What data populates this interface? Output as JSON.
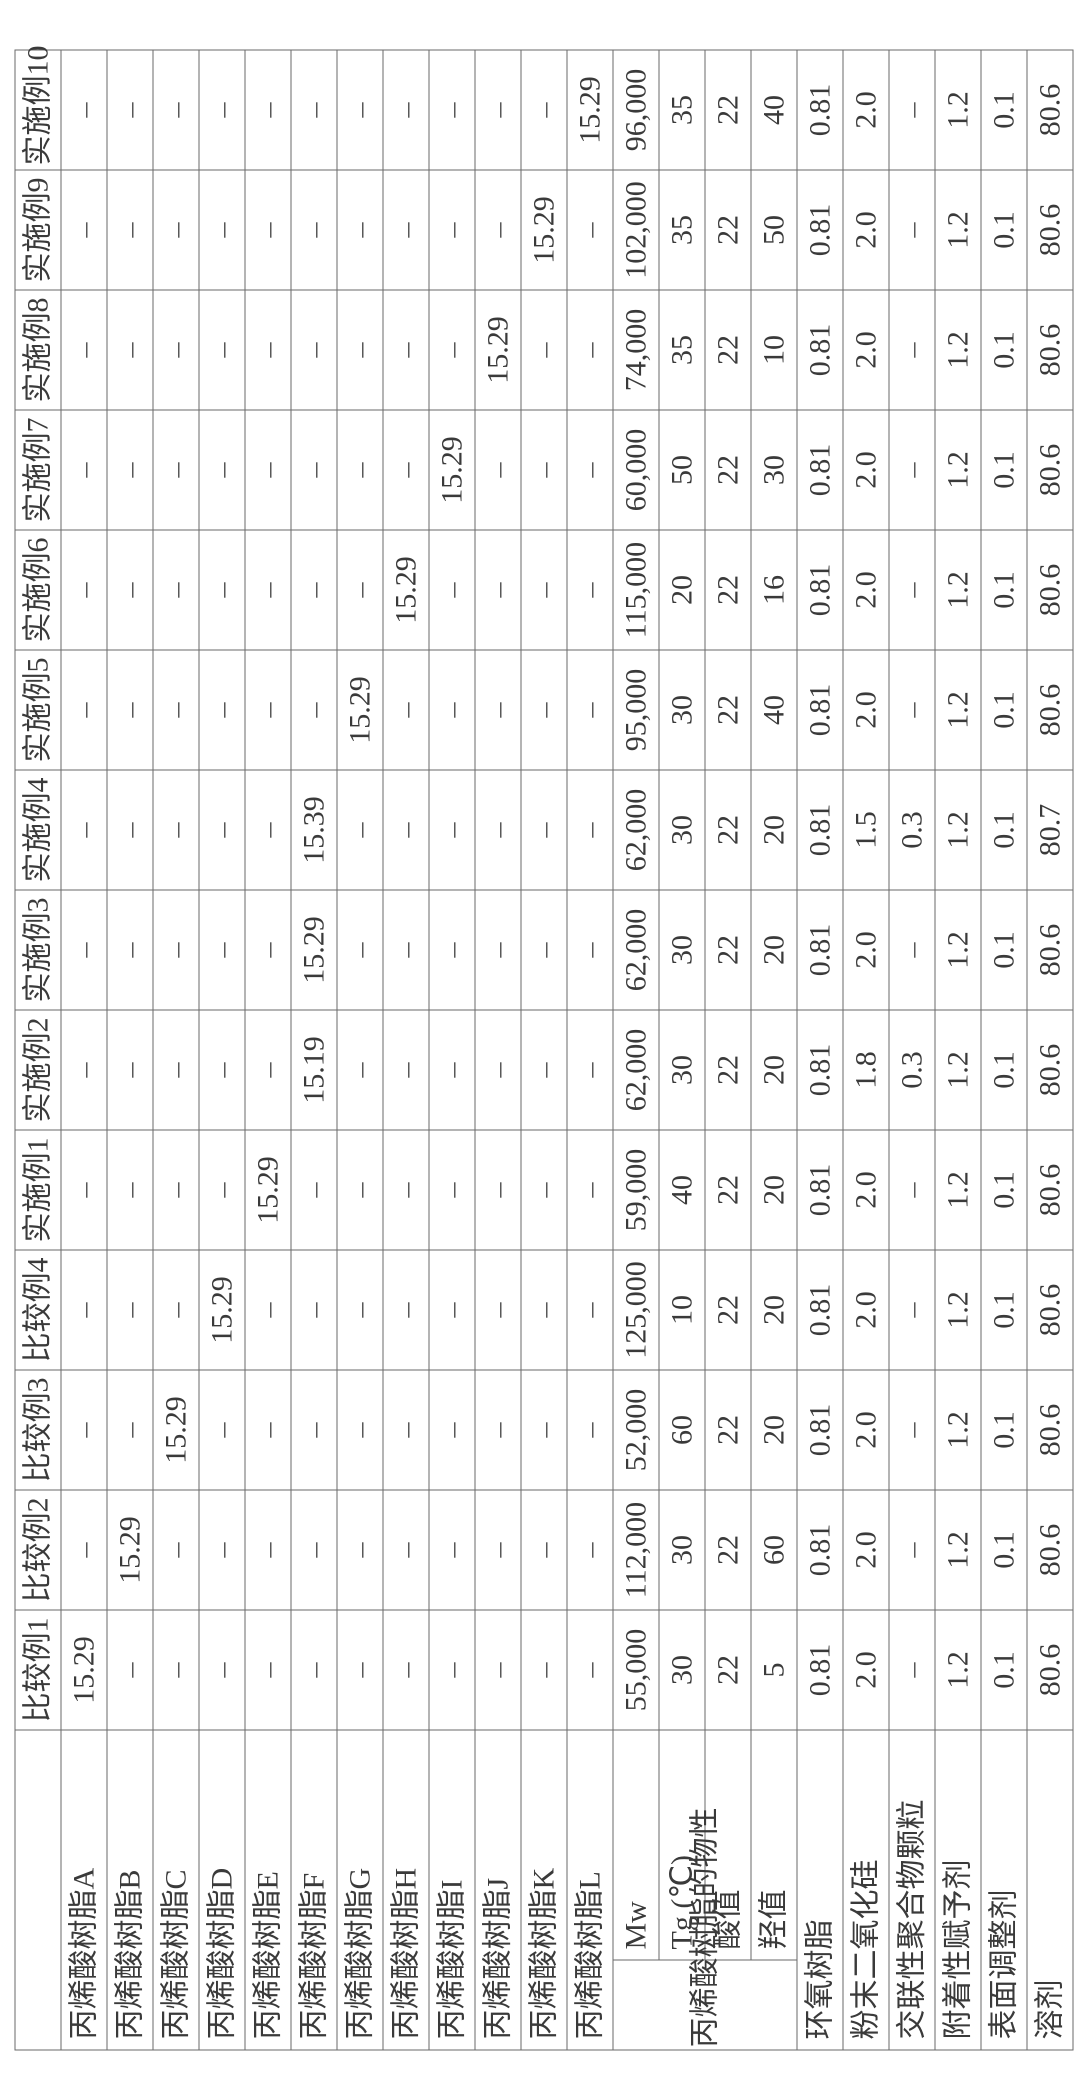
{
  "columns": [
    "比较例1",
    "比较例2",
    "比较例3",
    "比较例4",
    "实施例1",
    "实施例2",
    "实施例3",
    "实施例4",
    "实施例5",
    "实施例6",
    "实施例7",
    "实施例8",
    "实施例9",
    "实施例10"
  ],
  "row_headers": {
    "resinA": "丙烯酸树脂A",
    "resinB": "丙烯酸树脂B",
    "resinC": "丙烯酸树脂C",
    "resinD": "丙烯酸树脂D",
    "resinE": "丙烯酸树脂E",
    "resinF": "丙烯酸树脂F",
    "resinG": "丙烯酸树脂G",
    "resinH": "丙烯酸树脂H",
    "resinI": "丙烯酸树脂I",
    "resinJ": "丙烯酸树脂J",
    "resinK": "丙烯酸树脂K",
    "resinL": "丙烯酸树脂L",
    "group": "丙烯酸树脂的物性",
    "mw": "Mw",
    "tg": "Tg (℃)",
    "acid": "酸值",
    "oh": "羟值",
    "epoxy": "环氧树脂",
    "silica": "粉末二氧化硅",
    "xlink": "交联性聚合物颗粒",
    "adh": "附着性赋予剂",
    "surf": "表面调整剂",
    "solv": "溶剂"
  },
  "rows": {
    "resinA": [
      "15.29",
      "",
      "",
      "",
      "",
      "",
      "",
      "",
      "",
      "",
      "",
      "",
      "",
      ""
    ],
    "resinB": [
      "",
      "15.29",
      "",
      "",
      "",
      "",
      "",
      "",
      "",
      "",
      "",
      "",
      "",
      ""
    ],
    "resinC": [
      "",
      "",
      "15.29",
      "",
      "",
      "",
      "",
      "",
      "",
      "",
      "",
      "",
      "",
      ""
    ],
    "resinD": [
      "",
      "",
      "",
      "15.29",
      "",
      "",
      "",
      "",
      "",
      "",
      "",
      "",
      "",
      ""
    ],
    "resinE": [
      "",
      "",
      "",
      "",
      "15.29",
      "",
      "",
      "",
      "",
      "",
      "",
      "",
      "",
      ""
    ],
    "resinF": [
      "",
      "",
      "",
      "",
      "",
      "15.19",
      "15.29",
      "15.39",
      "",
      "",
      "",
      "",
      "",
      ""
    ],
    "resinG": [
      "",
      "",
      "",
      "",
      "",
      "",
      "",
      "",
      "15.29",
      "",
      "",
      "",
      "",
      ""
    ],
    "resinH": [
      "",
      "",
      "",
      "",
      "",
      "",
      "",
      "",
      "",
      "15.29",
      "",
      "",
      "",
      ""
    ],
    "resinI": [
      "",
      "",
      "",
      "",
      "",
      "",
      "",
      "",
      "",
      "",
      "15.29",
      "",
      "",
      ""
    ],
    "resinJ": [
      "",
      "",
      "",
      "",
      "",
      "",
      "",
      "",
      "",
      "",
      "",
      "15.29",
      "",
      ""
    ],
    "resinK": [
      "",
      "",
      "",
      "",
      "",
      "",
      "",
      "",
      "",
      "",
      "",
      "",
      "15.29",
      ""
    ],
    "resinL": [
      "",
      "",
      "",
      "",
      "",
      "",
      "",
      "",
      "",
      "",
      "",
      "",
      "",
      "15.29"
    ],
    "mw": [
      "55,000",
      "112,000",
      "52,000",
      "125,000",
      "59,000",
      "62,000",
      "62,000",
      "62,000",
      "95,000",
      "115,000",
      "60,000",
      "74,000",
      "102,000",
      "96,000"
    ],
    "tg": [
      "30",
      "30",
      "60",
      "10",
      "40",
      "30",
      "30",
      "30",
      "30",
      "20",
      "50",
      "35",
      "35",
      "35"
    ],
    "acid": [
      "22",
      "22",
      "22",
      "22",
      "22",
      "22",
      "22",
      "22",
      "22",
      "22",
      "22",
      "22",
      "22",
      "22"
    ],
    "oh": [
      "5",
      "60",
      "20",
      "20",
      "20",
      "20",
      "20",
      "20",
      "40",
      "16",
      "30",
      "10",
      "50",
      "40"
    ],
    "epoxy": [
      "0.81",
      "0.81",
      "0.81",
      "0.81",
      "0.81",
      "0.81",
      "0.81",
      "0.81",
      "0.81",
      "0.81",
      "0.81",
      "0.81",
      "0.81",
      "0.81"
    ],
    "silica": [
      "2.0",
      "2.0",
      "2.0",
      "2.0",
      "2.0",
      "1.8",
      "2.0",
      "1.5",
      "2.0",
      "2.0",
      "2.0",
      "2.0",
      "2.0",
      "2.0"
    ],
    "xlink": [
      "",
      "",
      "",
      "",
      "",
      "0.3",
      "",
      "0.3",
      "",
      "",
      "",
      "",
      "",
      ""
    ],
    "adh": [
      "1.2",
      "1.2",
      "1.2",
      "1.2",
      "1.2",
      "1.2",
      "1.2",
      "1.2",
      "1.2",
      "1.2",
      "1.2",
      "1.2",
      "1.2",
      "1.2"
    ],
    "surf": [
      "0.1",
      "0.1",
      "0.1",
      "0.1",
      "0.1",
      "0.1",
      "0.1",
      "0.1",
      "0.1",
      "0.1",
      "0.1",
      "0.1",
      "0.1",
      "0.1"
    ],
    "solv": [
      "80.6",
      "80.6",
      "80.6",
      "80.6",
      "80.6",
      "80.6",
      "80.6",
      "80.7",
      "80.6",
      "80.6",
      "80.6",
      "80.6",
      "80.6",
      "80.6"
    ]
  },
  "style": {
    "border_color": "#6a6a6a",
    "text_color": "#3a3a3a",
    "font_size_pt": 30,
    "background": "#ffffff",
    "rotation_deg": -90
  }
}
